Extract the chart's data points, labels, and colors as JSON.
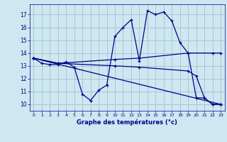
{
  "bg_color": "#cde8f0",
  "line_color": "#00008b",
  "grid_color": "#a0b8c8",
  "xlabel": "Graphe des températures (°c)",
  "ylim": [
    9.5,
    17.8
  ],
  "xlim": [
    -0.5,
    23.5
  ],
  "yticks": [
    10,
    11,
    12,
    13,
    14,
    15,
    16,
    17
  ],
  "xticks": [
    0,
    1,
    2,
    3,
    4,
    5,
    6,
    7,
    8,
    9,
    10,
    11,
    12,
    13,
    14,
    15,
    16,
    17,
    18,
    19,
    20,
    21,
    22,
    23
  ],
  "series": [
    {
      "x": [
        0,
        1,
        2,
        3,
        4,
        5,
        6,
        7,
        8,
        9,
        10,
        11,
        12,
        13,
        14,
        15,
        16,
        17,
        18,
        19,
        20,
        21,
        22,
        23
      ],
      "y": [
        13.6,
        13.2,
        13.1,
        13.1,
        13.3,
        12.9,
        10.8,
        10.3,
        11.1,
        11.5,
        15.3,
        16.0,
        16.6,
        13.4,
        17.3,
        17.0,
        17.2,
        16.5,
        14.8,
        14.0,
        10.5,
        10.5,
        10.0,
        10.0
      ]
    },
    {
      "x": [
        0,
        3,
        10,
        13,
        19,
        22,
        23
      ],
      "y": [
        13.6,
        13.2,
        13.5,
        13.6,
        14.0,
        14.0,
        14.0
      ]
    },
    {
      "x": [
        0,
        3,
        10,
        13,
        19,
        20,
        21,
        22,
        23
      ],
      "y": [
        13.6,
        13.2,
        13.0,
        12.9,
        12.6,
        12.2,
        10.5,
        10.0,
        10.0
      ]
    },
    {
      "x": [
        0,
        23
      ],
      "y": [
        13.6,
        10.0
      ]
    }
  ]
}
